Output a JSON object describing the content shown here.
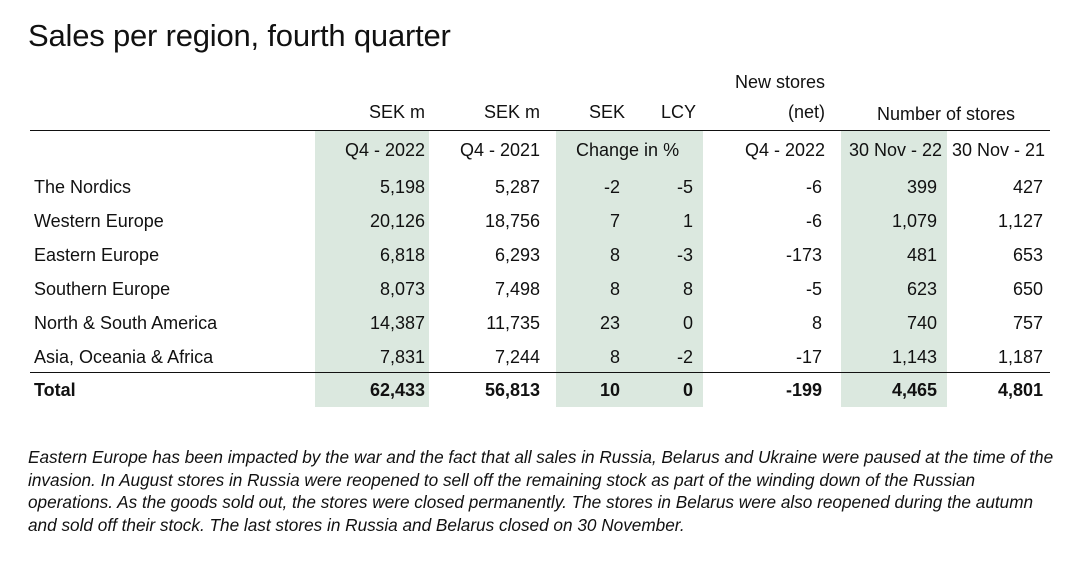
{
  "title": "Sales per region, fourth quarter",
  "header": {
    "new_stores_line1": "New stores",
    "new_stores_line2": "(net)",
    "unit_sek_m_1": "SEK m",
    "unit_sek_m_2": "SEK m",
    "unit_sek": "SEK",
    "unit_lcy": "LCY",
    "number_of_stores": "Number of stores",
    "q4_2022": "Q4 - 2022",
    "q4_2021": "Q4 - 2021",
    "change_in_pct": "Change in %",
    "new_stores_period": "Q4 - 2022",
    "stores_date_1": "30 Nov - 22",
    "stores_date_2": "30 Nov - 21"
  },
  "rows": [
    {
      "region": "The Nordics",
      "q4_2022": "5,198",
      "q4_2021": "5,287",
      "sek": "-2",
      "lcy": "-5",
      "new_stores": "-6",
      "stores_22": "399",
      "stores_21": "427"
    },
    {
      "region": "Western Europe",
      "q4_2022": "20,126",
      "q4_2021": "18,756",
      "sek": "7",
      "lcy": "1",
      "new_stores": "-6",
      "stores_22": "1,079",
      "stores_21": "1,127"
    },
    {
      "region": "Eastern Europe",
      "q4_2022": "6,818",
      "q4_2021": "6,293",
      "sek": "8",
      "lcy": "-3",
      "new_stores": "-173",
      "stores_22": "481",
      "stores_21": "653"
    },
    {
      "region": "Southern Europe",
      "q4_2022": "8,073",
      "q4_2021": "7,498",
      "sek": "8",
      "lcy": "8",
      "new_stores": "-5",
      "stores_22": "623",
      "stores_21": "650"
    },
    {
      "region": "North & South America",
      "q4_2022": "14,387",
      "q4_2021": "11,735",
      "sek": "23",
      "lcy": "0",
      "new_stores": "8",
      "stores_22": "740",
      "stores_21": "757"
    },
    {
      "region": "Asia, Oceania & Africa",
      "q4_2022": "7,831",
      "q4_2021": "7,244",
      "sek": "8",
      "lcy": "-2",
      "new_stores": "-17",
      "stores_22": "1,143",
      "stores_21": "1,187"
    }
  ],
  "total": {
    "region": "Total",
    "q4_2022": "62,433",
    "q4_2021": "56,813",
    "sek": "10",
    "lcy": "0",
    "new_stores": "-199",
    "stores_22": "4,465",
    "stores_21": "4,801"
  },
  "note": "Eastern Europe has been impacted by the war and the fact that all sales in Russia, Belarus and Ukraine were paused at the time of the invasion. In August stores in Russia were reopened to sell off the remaining stock as part of the winding down of the Russian operations. As the goods sold out, the stores were closed permanently. The stores in Belarus were also reopened during the autumn and sold off their stock. The last stores in Russia and Belarus closed on 30 November.",
  "colors": {
    "shade": "#dbe8df",
    "text": "#111111",
    "rule": "#111111"
  }
}
